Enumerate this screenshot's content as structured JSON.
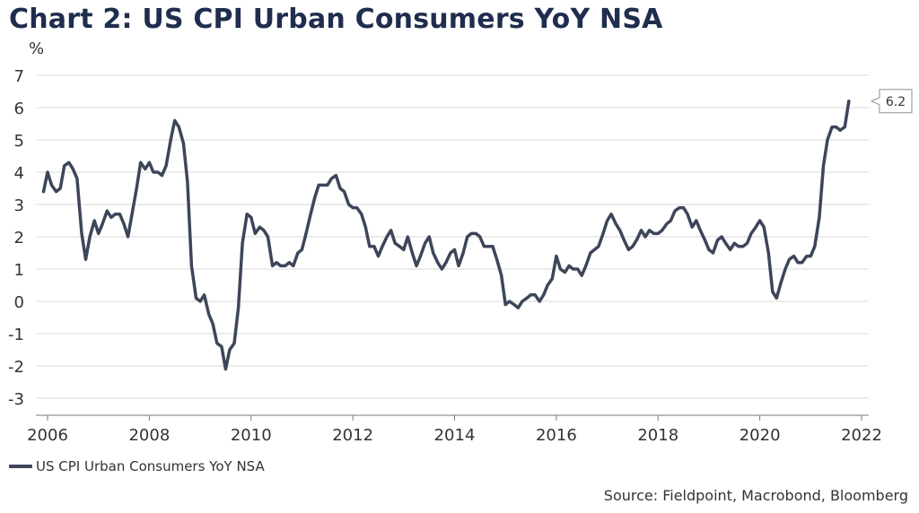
{
  "title": "Chart 2: US CPI Urban Consumers YoY NSA",
  "source": "Source: Fieldpoint, Macrobond, Bloomberg",
  "colors": {
    "line": "#3d4659",
    "title": "#1f2d4e",
    "grid": "#d9d9d9"
  },
  "chart_data": {
    "type": "line",
    "title": "Chart 2: US CPI Urban Consumers YoY NSA",
    "ylabel": "%",
    "xlabel": "",
    "ylim": [
      -3,
      7
    ],
    "xlim": [
      2006,
      2022
    ],
    "yticks": [
      7,
      6,
      5,
      4,
      3,
      2,
      1,
      0,
      -1,
      -2,
      -3
    ],
    "xticks": [
      2006,
      2008,
      2010,
      2012,
      2014,
      2016,
      2018,
      2020,
      2022
    ],
    "grid": "horizontal",
    "legend": "bottom-left",
    "last_value_label": "6.2",
    "series": [
      {
        "name": "US CPI Urban Consumers YoY NSA",
        "x": [
          2005.92,
          2006.0,
          2006.08,
          2006.17,
          2006.25,
          2006.33,
          2006.42,
          2006.5,
          2006.58,
          2006.67,
          2006.75,
          2006.83,
          2006.92,
          2007.0,
          2007.08,
          2007.17,
          2007.25,
          2007.33,
          2007.42,
          2007.5,
          2007.58,
          2007.67,
          2007.75,
          2007.83,
          2007.92,
          2008.0,
          2008.08,
          2008.17,
          2008.25,
          2008.33,
          2008.42,
          2008.5,
          2008.58,
          2008.67,
          2008.75,
          2008.83,
          2008.92,
          2009.0,
          2009.08,
          2009.17,
          2009.25,
          2009.33,
          2009.42,
          2009.5,
          2009.58,
          2009.67,
          2009.75,
          2009.83,
          2009.92,
          2010.0,
          2010.08,
          2010.17,
          2010.25,
          2010.33,
          2010.42,
          2010.5,
          2010.58,
          2010.67,
          2010.75,
          2010.83,
          2010.92,
          2011.0,
          2011.08,
          2011.17,
          2011.25,
          2011.33,
          2011.42,
          2011.5,
          2011.58,
          2011.67,
          2011.75,
          2011.83,
          2011.92,
          2012.0,
          2012.08,
          2012.17,
          2012.25,
          2012.33,
          2012.42,
          2012.5,
          2012.58,
          2012.67,
          2012.75,
          2012.83,
          2012.92,
          2013.0,
          2013.08,
          2013.17,
          2013.25,
          2013.33,
          2013.42,
          2013.5,
          2013.58,
          2013.67,
          2013.75,
          2013.83,
          2013.92,
          2014.0,
          2014.08,
          2014.17,
          2014.25,
          2014.33,
          2014.42,
          2014.5,
          2014.58,
          2014.67,
          2014.75,
          2014.83,
          2014.92,
          2015.0,
          2015.08,
          2015.17,
          2015.25,
          2015.33,
          2015.42,
          2015.5,
          2015.58,
          2015.67,
          2015.75,
          2015.83,
          2015.92,
          2016.0,
          2016.08,
          2016.17,
          2016.25,
          2016.33,
          2016.42,
          2016.5,
          2016.58,
          2016.67,
          2016.75,
          2016.83,
          2016.92,
          2017.0,
          2017.08,
          2017.17,
          2017.25,
          2017.33,
          2017.42,
          2017.5,
          2017.58,
          2017.67,
          2017.75,
          2017.83,
          2017.92,
          2018.0,
          2018.08,
          2018.17,
          2018.25,
          2018.33,
          2018.42,
          2018.5,
          2018.58,
          2018.67,
          2018.75,
          2018.83,
          2018.92,
          2019.0,
          2019.08,
          2019.17,
          2019.25,
          2019.33,
          2019.42,
          2019.5,
          2019.58,
          2019.67,
          2019.75,
          2019.83,
          2019.92,
          2020.0,
          2020.08,
          2020.17,
          2020.25,
          2020.33,
          2020.42,
          2020.5,
          2020.58,
          2020.67,
          2020.75,
          2020.83,
          2020.92,
          2021.0,
          2021.08,
          2021.17,
          2021.25,
          2021.33,
          2021.42,
          2021.5,
          2021.58,
          2021.67,
          2021.75
        ],
        "values": [
          3.4,
          4.0,
          3.6,
          3.4,
          3.5,
          4.2,
          4.3,
          4.1,
          3.8,
          2.1,
          1.3,
          2.0,
          2.5,
          2.1,
          2.4,
          2.8,
          2.6,
          2.7,
          2.7,
          2.4,
          2.0,
          2.8,
          3.5,
          4.3,
          4.1,
          4.3,
          4.0,
          4.0,
          3.9,
          4.2,
          5.0,
          5.6,
          5.4,
          4.9,
          3.7,
          1.1,
          0.1,
          0.0,
          0.2,
          -0.4,
          -0.7,
          -1.3,
          -1.4,
          -2.1,
          -1.5,
          -1.3,
          -0.2,
          1.8,
          2.7,
          2.6,
          2.1,
          2.3,
          2.2,
          2.0,
          1.1,
          1.2,
          1.1,
          1.1,
          1.2,
          1.1,
          1.5,
          1.6,
          2.1,
          2.7,
          3.2,
          3.6,
          3.6,
          3.6,
          3.8,
          3.9,
          3.5,
          3.4,
          3.0,
          2.9,
          2.9,
          2.7,
          2.3,
          1.7,
          1.7,
          1.4,
          1.7,
          2.0,
          2.2,
          1.8,
          1.7,
          1.6,
          2.0,
          1.5,
          1.1,
          1.4,
          1.8,
          2.0,
          1.5,
          1.2,
          1.0,
          1.2,
          1.5,
          1.6,
          1.1,
          1.5,
          2.0,
          2.1,
          2.1,
          2.0,
          1.7,
          1.7,
          1.7,
          1.3,
          0.8,
          -0.1,
          0.0,
          -0.1,
          -0.2,
          0.0,
          0.1,
          0.2,
          0.2,
          0.0,
          0.2,
          0.5,
          0.7,
          1.4,
          1.0,
          0.9,
          1.1,
          1.0,
          1.0,
          0.8,
          1.1,
          1.5,
          1.6,
          1.7,
          2.1,
          2.5,
          2.7,
          2.4,
          2.2,
          1.9,
          1.6,
          1.7,
          1.9,
          2.2,
          2.0,
          2.2,
          2.1,
          2.1,
          2.2,
          2.4,
          2.5,
          2.8,
          2.9,
          2.9,
          2.7,
          2.3,
          2.5,
          2.2,
          1.9,
          1.6,
          1.5,
          1.9,
          2.0,
          1.8,
          1.6,
          1.8,
          1.7,
          1.7,
          1.8,
          2.1,
          2.3,
          2.5,
          2.3,
          1.5,
          0.3,
          0.1,
          0.6,
          1.0,
          1.3,
          1.4,
          1.2,
          1.2,
          1.4,
          1.4,
          1.7,
          2.6,
          4.2,
          5.0,
          5.4,
          5.4,
          5.3,
          5.4,
          6.2
        ]
      }
    ]
  }
}
